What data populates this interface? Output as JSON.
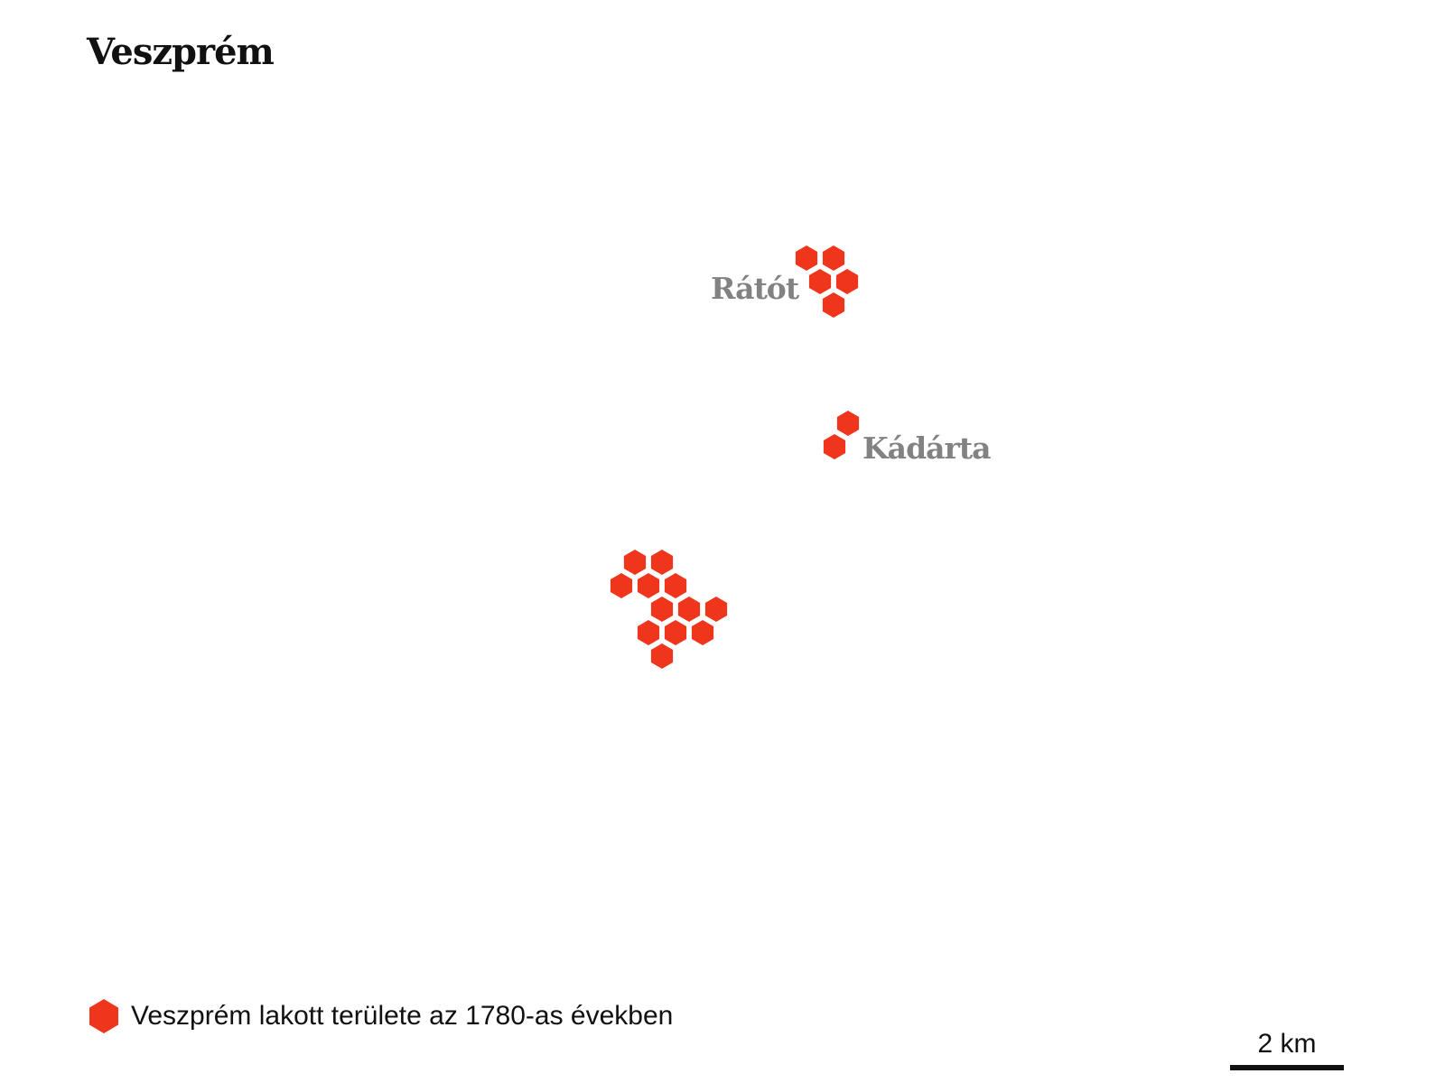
{
  "title": "Veszprém",
  "colors": {
    "settlement_fill": "#f0351d",
    "label_text": "#828282",
    "text": "#111111",
    "background": "#ffffff"
  },
  "settlements": [
    {
      "name": "Rátót",
      "hexagon_count": 5
    },
    {
      "name": "Kádárta",
      "hexagon_count": 2
    },
    {
      "name": "",
      "hexagon_count": 12
    }
  ],
  "legend": {
    "icon": "hexagon-icon",
    "label": "Veszprém lakott területe az 1780-as években"
  },
  "scale": {
    "label": "2 km"
  }
}
